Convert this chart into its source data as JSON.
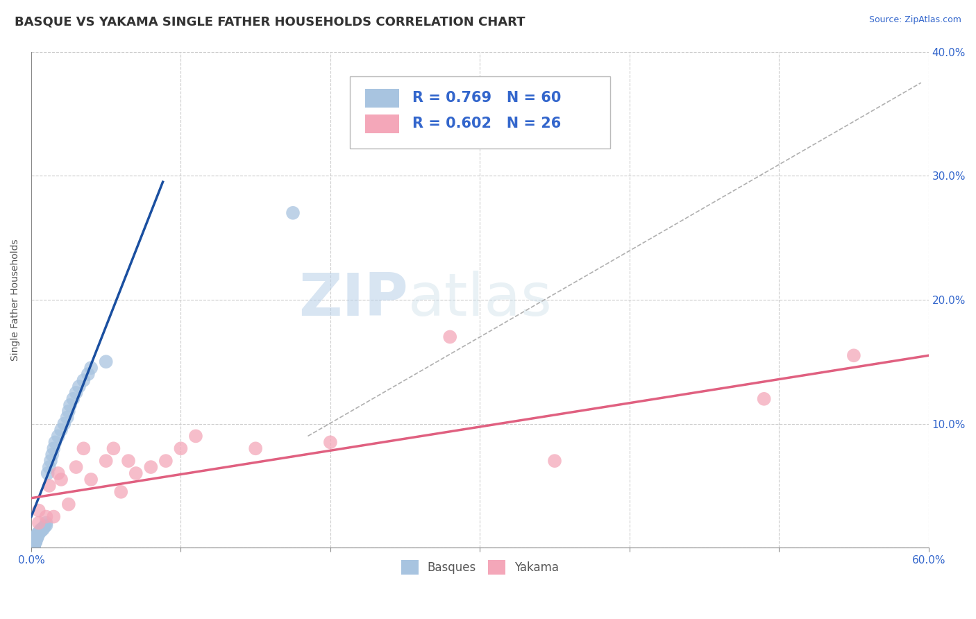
{
  "title": "BASQUE VS YAKAMA SINGLE FATHER HOUSEHOLDS CORRELATION CHART",
  "source_text": "Source: ZipAtlas.com",
  "ylabel": "Single Father Households",
  "xlim": [
    0,
    0.6
  ],
  "ylim": [
    0,
    0.4
  ],
  "basques_R": 0.769,
  "basques_N": 60,
  "yakama_R": 0.602,
  "yakama_N": 26,
  "basque_color": "#a8c4e0",
  "yakama_color": "#f4a7b9",
  "basque_line_color": "#1a4fa0",
  "yakama_line_color": "#e06080",
  "background_color": "#ffffff",
  "watermark_zip": "ZIP",
  "watermark_atlas": "atlas",
  "grid_color": "#cccccc",
  "title_fontsize": 13,
  "axis_label_fontsize": 10,
  "tick_fontsize": 11,
  "legend_fontsize": 14,
  "basque_scatter_x": [
    0.002,
    0.002,
    0.002,
    0.002,
    0.002,
    0.002,
    0.002,
    0.002,
    0.002,
    0.002,
    0.003,
    0.003,
    0.003,
    0.003,
    0.003,
    0.003,
    0.003,
    0.003,
    0.003,
    0.003,
    0.004,
    0.004,
    0.004,
    0.004,
    0.004,
    0.004,
    0.004,
    0.005,
    0.005,
    0.005,
    0.006,
    0.006,
    0.006,
    0.007,
    0.007,
    0.008,
    0.008,
    0.009,
    0.01,
    0.01,
    0.011,
    0.012,
    0.013,
    0.014,
    0.015,
    0.016,
    0.018,
    0.02,
    0.022,
    0.024,
    0.025,
    0.026,
    0.028,
    0.03,
    0.032,
    0.035,
    0.038,
    0.04,
    0.05,
    0.175
  ],
  "basque_scatter_y": [
    0.002,
    0.002,
    0.002,
    0.002,
    0.003,
    0.003,
    0.003,
    0.004,
    0.004,
    0.005,
    0.005,
    0.005,
    0.005,
    0.006,
    0.006,
    0.006,
    0.007,
    0.007,
    0.008,
    0.008,
    0.008,
    0.009,
    0.009,
    0.01,
    0.01,
    0.01,
    0.011,
    0.011,
    0.012,
    0.012,
    0.013,
    0.013,
    0.014,
    0.014,
    0.015,
    0.015,
    0.016,
    0.017,
    0.018,
    0.02,
    0.06,
    0.065,
    0.07,
    0.075,
    0.08,
    0.085,
    0.09,
    0.095,
    0.1,
    0.105,
    0.11,
    0.115,
    0.12,
    0.125,
    0.13,
    0.135,
    0.14,
    0.145,
    0.15,
    0.27
  ],
  "yakama_scatter_x": [
    0.005,
    0.005,
    0.01,
    0.012,
    0.015,
    0.018,
    0.02,
    0.025,
    0.03,
    0.035,
    0.04,
    0.05,
    0.055,
    0.06,
    0.065,
    0.07,
    0.08,
    0.09,
    0.1,
    0.11,
    0.15,
    0.2,
    0.28,
    0.35,
    0.49,
    0.55
  ],
  "yakama_scatter_y": [
    0.02,
    0.03,
    0.025,
    0.05,
    0.025,
    0.06,
    0.055,
    0.035,
    0.065,
    0.08,
    0.055,
    0.07,
    0.08,
    0.045,
    0.07,
    0.06,
    0.065,
    0.07,
    0.08,
    0.09,
    0.08,
    0.085,
    0.17,
    0.07,
    0.12,
    0.155
  ],
  "basque_line_x": [
    0.0,
    0.088
  ],
  "basque_line_y": [
    0.025,
    0.295
  ],
  "yakama_line_x": [
    0.0,
    0.6
  ],
  "yakama_line_y": [
    0.04,
    0.155
  ],
  "ref_line_x": [
    0.185,
    0.595
  ],
  "ref_line_y": [
    0.09,
    0.375
  ]
}
